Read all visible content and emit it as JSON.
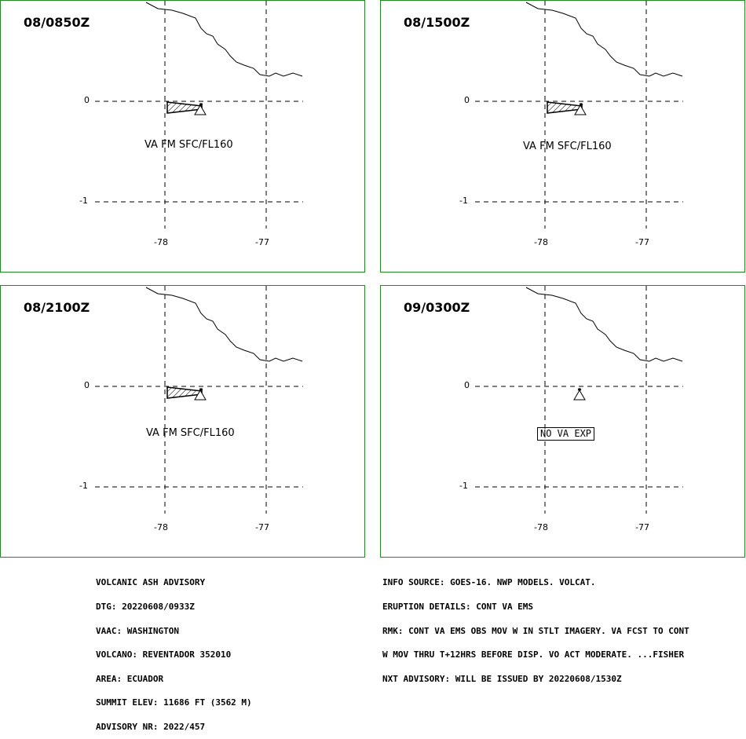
{
  "panels": [
    {
      "time": "08/0850Z",
      "label": "VA FM SFC/FL160",
      "has_ash": true,
      "no_va": false
    },
    {
      "time": "08/1500Z",
      "label": "VA FM SFC/FL160",
      "has_ash": true,
      "no_va": false
    },
    {
      "time": "08/2100Z",
      "label": "VA FM SFC/FL160",
      "has_ash": true,
      "no_va": false
    },
    {
      "time": "09/0300Z",
      "label": "NO VA EXP",
      "has_ash": false,
      "no_va": true
    }
  ],
  "axes": {
    "lat_labels": [
      "0",
      "-1"
    ],
    "lon_labels": [
      "-78",
      "-77"
    ]
  },
  "advisory_left": [
    "VOLCANIC ASH ADVISORY",
    "DTG: 20220608/0933Z",
    "VAAC: WASHINGTON",
    "VOLCANO: REVENTADOR 352010",
    "AREA: ECUADOR",
    "SUMMIT ELEV: 11686 FT (3562 M)",
    "ADVISORY NR: 2022/457"
  ],
  "advisory_right": [
    "INFO SOURCE: GOES-16. NWP MODELS. VOLCAT.",
    "ERUPTION DETAILS: CONT VA EMS",
    "RMK: CONT VA EMS OBS MOV W IN STLT IMAGERY. VA FCST TO CONT",
    "W MOV THRU T+12HRS BEFORE DISP. VO ACT MODERATE. ...FISHER",
    "NXT ADVISORY: WILL BE ISSUED BY 20220608/1530Z"
  ]
}
